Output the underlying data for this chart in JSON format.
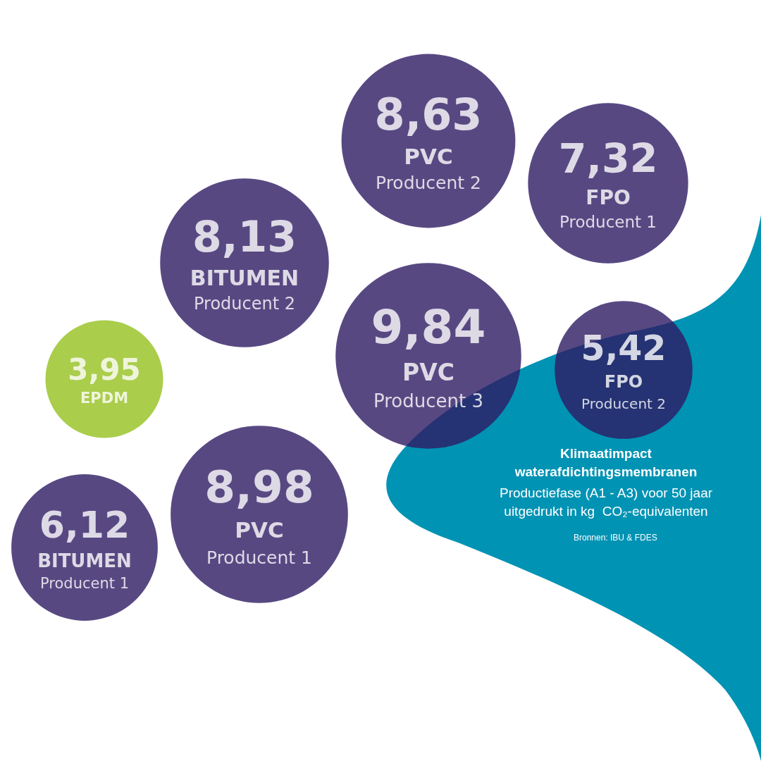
{
  "chart_data": {
    "type": "other",
    "title": "Klimaatimpact\nwaterafdichtingsmembranen",
    "subtitle": "Productiefase (A1 - A3) voor 50 jaar\nuitgedrukt in kg  CO₂-equivalenten",
    "annotations": [
      "Bronnen: IBU & FDES"
    ],
    "categories": [
      "PVC\nProducent 2",
      "FPO\nProducent 1",
      "BITUMEN\nProducent 2",
      "PVC\nProducent 3",
      "FPO\nProducent 2",
      "EPDM",
      "PVC\nProducent 1",
      "BITUMEN\nProducent 1"
    ],
    "values": [
      8.63,
      7.32,
      8.13,
      9.84,
      5.42,
      3.95,
      8.98,
      6.12
    ],
    "value_labels": [
      "8,63",
      "7,32",
      "8,13",
      "9,84",
      "5,42",
      "3,95",
      "8,98",
      "6,12"
    ],
    "colors": [
      "#2e1a63",
      "#2e1a63",
      "#2e1a63",
      "#2e1a63",
      "#2e1a63",
      "#95c11f",
      "#2e1a63",
      "#2e1a63"
    ]
  }
}
